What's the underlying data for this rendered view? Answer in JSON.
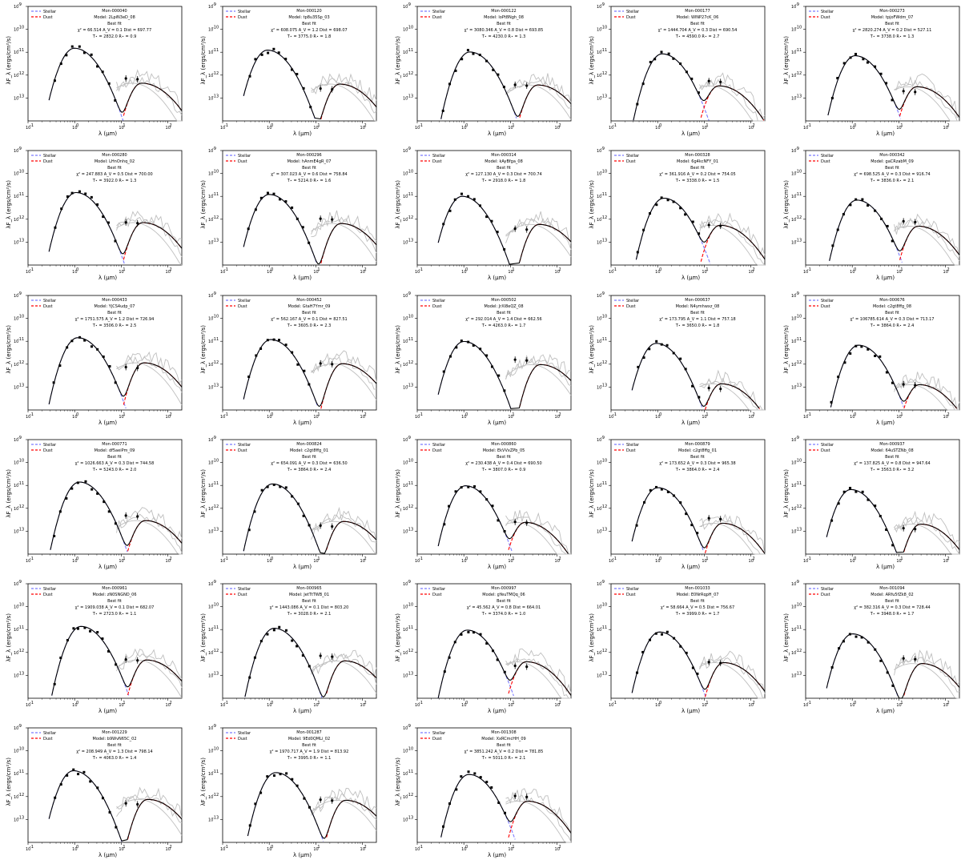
{
  "figure": {
    "layout": "grid",
    "columns": 5,
    "rows": 6,
    "panels_count": 28
  },
  "common": {
    "legend": [
      "Stellar",
      "Dust"
    ],
    "xlabel": "λ (μm)",
    "ylabel": "λF_λ (ergs/cm²/s)",
    "best_fit_label": "Best fit",
    "xscale": "log",
    "yscale": "log",
    "colors": {
      "stellar": "#7b7bff",
      "dust": "#ff0000",
      "model": "#000000",
      "total_dust_model": "#8b0000",
      "alt_fits": "#bfbfbf",
      "obs": "#000000"
    }
  },
  "chart_data": [
    {
      "type": "line",
      "title": "Mon-000040",
      "model": "Model: 2LpiN3eD_08",
      "chi2": "66.514",
      "av": "0.1",
      "dist": "697.77",
      "teff": "2832.0",
      "rstar": "0.9"
    },
    {
      "type": "line",
      "title": "Mon-000120",
      "model": "Model: tp8u35Sp_03",
      "chi2": "608.075",
      "av": "1.2",
      "dist": "698.07",
      "teff": "3775.0",
      "rstar": "1.8"
    },
    {
      "type": "line",
      "title": "Mon-000122",
      "model": "Model: loPt8Ngh_08",
      "chi2": "3080.346",
      "av": "0.8",
      "dist": "693.85",
      "teff": "4230.0",
      "rstar": "1.3"
    },
    {
      "type": "line",
      "title": "Mon-000177",
      "model": "Model: WlNP27cK_06",
      "chi2": "1444.704",
      "av": "0.3",
      "dist": "690.54",
      "teff": "4590.0",
      "rstar": "2.7"
    },
    {
      "type": "line",
      "title": "Mon-000273",
      "model": "Model: tpjoFWdm_07",
      "chi2": "2820.274",
      "av": "0.2",
      "dist": "527.11",
      "teff": "3738.0",
      "rstar": "1.3"
    },
    {
      "type": "line",
      "title": "Mon-000280",
      "model": "Model: LHnOnhq_02",
      "chi2": "247.883",
      "av": "0.5",
      "dist": "700.00",
      "teff": "3922.0",
      "rstar": "1.3"
    },
    {
      "type": "line",
      "title": "Mon-000296",
      "model": "Model: hAnmE4gR_07",
      "chi2": "307.023",
      "av": "0.6",
      "dist": "758.84",
      "teff": "5214.0",
      "rstar": "1.6"
    },
    {
      "type": "line",
      "title": "Mon-000314",
      "model": "Model: kAyBfga_08",
      "chi2": "127.130",
      "av": "0.3",
      "dist": "700.74",
      "teff": "2918.0",
      "rstar": "1.8"
    },
    {
      "type": "line",
      "title": "Mon-000328",
      "model": "Model: 6g4kcNFY_01",
      "chi2": "361.916",
      "av": "0.2",
      "dist": "754.05",
      "teff": "3338.0",
      "rstar": "1.5"
    },
    {
      "type": "line",
      "title": "Mon-000342",
      "model": "Model: gaCRzabM_09",
      "chi2": "698.525",
      "av": "0.3",
      "dist": "916.74",
      "teff": "3836.0",
      "rstar": "2.1"
    },
    {
      "type": "line",
      "title": "Mon-000433",
      "model": "Model: YjCS4udp_07",
      "chi2": "1751.575",
      "av": "1.2",
      "dist": "726.94",
      "teff": "3506.0",
      "rstar": "2.5"
    },
    {
      "type": "line",
      "title": "Mon-000452",
      "model": "Model: GtaH7Ymr_09",
      "chi2": "562.167",
      "av": "0.1",
      "dist": "827.51",
      "teff": "3605.0",
      "rstar": "2.3"
    },
    {
      "type": "line",
      "title": "Mon-000502",
      "model": "Model: JrXl8eQZ_08",
      "chi2": "292.014",
      "av": "1.4",
      "dist": "662.56",
      "teff": "4263.0",
      "rstar": "1.7"
    },
    {
      "type": "line",
      "title": "Mon-000637",
      "model": "Model: N4ymhwxz_08",
      "chi2": "173.795",
      "av": "1.1",
      "dist": "757.18",
      "teff": "3650.0",
      "rstar": "1.8"
    },
    {
      "type": "line",
      "title": "Mon-000676",
      "model": "Model: c2gt8ffg_08",
      "chi2": "106785.614",
      "av": "0.3",
      "dist": "713.17",
      "teff": "3864.0",
      "rstar": "2.4"
    },
    {
      "type": "line",
      "title": "Mon-000771",
      "model": "Model: df5aeiPm_09",
      "chi2": "1026.663",
      "av": "0.3",
      "dist": "744.58",
      "teff": "5243.0",
      "rstar": "2.0"
    },
    {
      "type": "line",
      "title": "Mon-000824",
      "model": "Model: c2gt8ffg_01",
      "chi2": "654.091",
      "av": "0.3",
      "dist": "636.50",
      "teff": "3864.0",
      "rstar": "2.4"
    },
    {
      "type": "line",
      "title": "Mon-000860",
      "model": "Model: EkVVxZPb_05",
      "chi2": "230.438",
      "av": "0.4",
      "dist": "690.50",
      "teff": "3807.0",
      "rstar": "0.9"
    },
    {
      "type": "line",
      "title": "Mon-000879",
      "model": "Model: c2gt8ffg_01",
      "chi2": "173.652",
      "av": "0.3",
      "dist": "965.38",
      "teff": "3864.0",
      "rstar": "2.4"
    },
    {
      "type": "line",
      "title": "Mon-000937",
      "model": "Model: 64uSTZNb_08",
      "chi2": "137.825",
      "av": "0.8",
      "dist": "947.64",
      "teff": "3563.0",
      "rstar": "3.2"
    },
    {
      "type": "line",
      "title": "Mon-000961",
      "model": "Model: zN0SNGND_06",
      "chi2": "1909.038",
      "av": "0.1",
      "dist": "682.07",
      "teff": "2723.0",
      "rstar": "1.1"
    },
    {
      "type": "line",
      "title": "Mon-000965",
      "model": "Model: JetTtTWB_01",
      "chi2": "1443.086",
      "av": "0.1",
      "dist": "803.20",
      "teff": "3028.0",
      "rstar": "2.1"
    },
    {
      "type": "line",
      "title": "Mon-000997",
      "model": "Model: gYeuTMQq_06",
      "chi2": "45.562",
      "av": "0.8",
      "dist": "664.01",
      "teff": "3374.0",
      "rstar": "1.0"
    },
    {
      "type": "line",
      "title": "Mon-001033",
      "model": "Model: E0NrRqpH_07",
      "chi2": "58.664",
      "av": "0.5",
      "dist": "756.67",
      "teff": "3999.0",
      "rstar": "1.7"
    },
    {
      "type": "line",
      "title": "Mon-001094",
      "model": "Model: ARfu5fZk8_02",
      "chi2": "382.316",
      "av": "0.3",
      "dist": "728.44",
      "teff": "3948.0",
      "rstar": "1.7"
    },
    {
      "type": "line",
      "title": "Mon-001229",
      "model": "Model: b9WvN65C_02",
      "chi2": "208.949",
      "av": "1.3",
      "dist": "798.14",
      "teff": "4063.0",
      "rstar": "1.4"
    },
    {
      "type": "line",
      "title": "Mon-001287",
      "model": "Model: 9Ed0QMLi_02",
      "chi2": "1970.717",
      "av": "1.9",
      "dist": "813.92",
      "teff": "3995.0",
      "rstar": "1.1"
    },
    {
      "type": "line",
      "title": "Mon-001308",
      "model": "Model: XxRCmcHH_09",
      "chi2": "3851.242",
      "av": "0.2",
      "dist": "781.85",
      "teff": "5011.0",
      "rstar": "2.1"
    }
  ]
}
